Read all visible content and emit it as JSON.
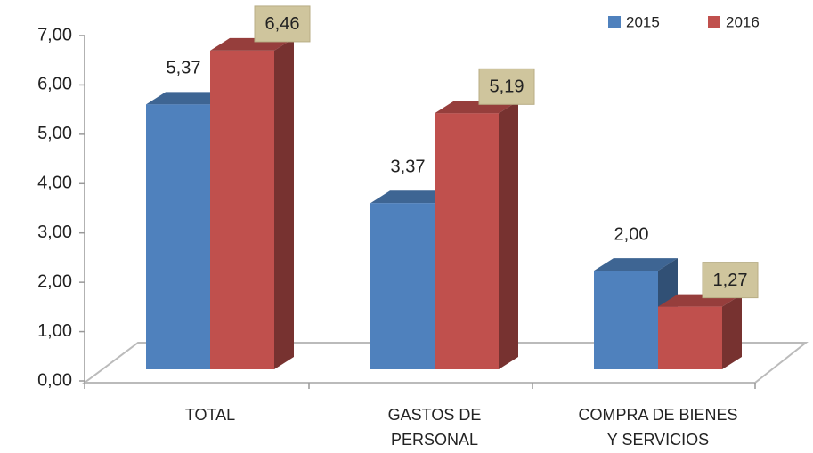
{
  "chart_data": {
    "type": "bar3d",
    "categories": [
      "TOTAL",
      "GASTOS DE\nPERSONAL",
      "COMPRA DE BIENES\nY SERVICIOS"
    ],
    "series": [
      {
        "name": "2015",
        "color": "#4f81bd",
        "values": [
          5.37,
          3.37,
          2.0
        ],
        "value_labels": [
          "5,37",
          "3,37",
          "2,00"
        ]
      },
      {
        "name": "2016",
        "color": "#c0504d",
        "values": [
          6.46,
          5.19,
          1.27
        ],
        "value_labels": [
          "6,46",
          "5,19",
          "1,27"
        ]
      }
    ],
    "ylim": [
      0,
      7
    ],
    "yticks": [
      {
        "value": 0,
        "label": "0,00"
      },
      {
        "value": 1,
        "label": "1,00"
      },
      {
        "value": 2,
        "label": "2,00"
      },
      {
        "value": 3,
        "label": "3,00"
      },
      {
        "value": 4,
        "label": "4,00"
      },
      {
        "value": 5,
        "label": "5,00"
      },
      {
        "value": 6,
        "label": "6,00"
      },
      {
        "value": 7,
        "label": "7,00"
      }
    ],
    "legend": "top-right"
  }
}
